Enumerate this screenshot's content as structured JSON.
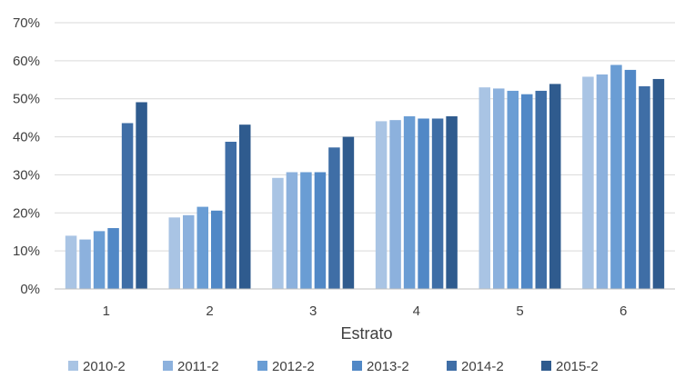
{
  "chart_data": {
    "type": "bar",
    "title": "",
    "xlabel": "Estrato",
    "ylabel": "",
    "categories": [
      "1",
      "2",
      "3",
      "4",
      "5",
      "6"
    ],
    "ylim": [
      0,
      70
    ],
    "yticks": [
      "0%",
      "10%",
      "20%",
      "30%",
      "40%",
      "50%",
      "60%",
      "70%"
    ],
    "grid": "horizontal",
    "legend_position": "bottom",
    "series": [
      {
        "name": "2010-2",
        "color": "#a9c4e4",
        "values": [
          14,
          18.8,
          29.2,
          44.1,
          53,
          55.8
        ]
      },
      {
        "name": "2011-2",
        "color": "#8cb1dd",
        "values": [
          13,
          19.4,
          30.7,
          44.4,
          52.7,
          56.4
        ]
      },
      {
        "name": "2012-2",
        "color": "#6a9dd4",
        "values": [
          15.2,
          21.6,
          30.7,
          45.4,
          52.1,
          58.9
        ]
      },
      {
        "name": "2013-2",
        "color": "#5188c6",
        "values": [
          16,
          20.6,
          30.7,
          44.8,
          51.2,
          57.6
        ]
      },
      {
        "name": "2014-2",
        "color": "#3f6ea6",
        "values": [
          43.6,
          38.7,
          37.2,
          44.8,
          52.1,
          53.3
        ]
      },
      {
        "name": "2015-2",
        "color": "#2f5b8e",
        "values": [
          49.1,
          43.2,
          40,
          45.4,
          53.9,
          55.2
        ]
      }
    ]
  }
}
